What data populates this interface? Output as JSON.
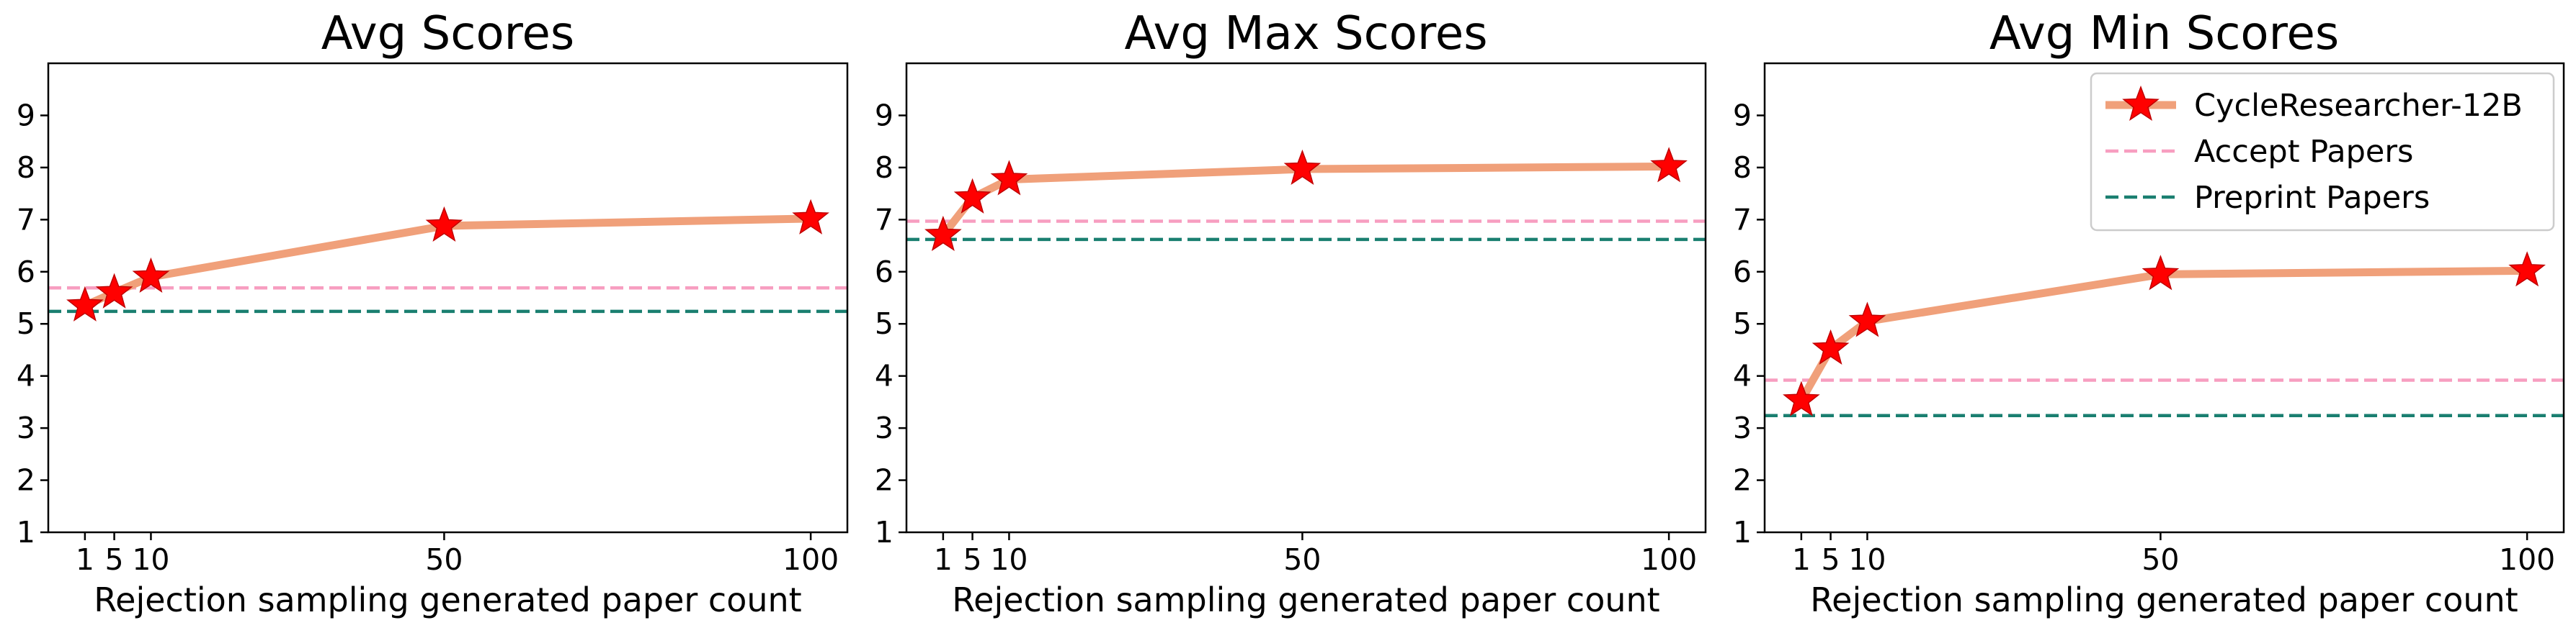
{
  "chart_data": [
    {
      "type": "line",
      "title": "Avg Scores",
      "xlabel": "Rejection sampling generated paper count",
      "ylabel": "",
      "x": [
        1,
        5,
        10,
        50,
        100
      ],
      "xticks": [
        1,
        5,
        10,
        50,
        100
      ],
      "xtick_labels": [
        "1",
        "5",
        "10",
        "50",
        "100"
      ],
      "yticks": [
        1,
        2,
        3,
        4,
        5,
        6,
        7,
        8,
        9
      ],
      "ytick_labels": [
        "1",
        "2",
        "3",
        "4",
        "5",
        "6",
        "7",
        "8",
        "9"
      ],
      "ylim": [
        1,
        10
      ],
      "xlim": [
        -4,
        105
      ],
      "grid": false,
      "series": [
        {
          "name": "CycleResearcher-12B",
          "values": [
            5.35,
            5.6,
            5.9,
            6.88,
            7.02
          ],
          "color": "#f0a07a",
          "marker": "star",
          "marker_color": "#ff0000"
        }
      ],
      "hlines": [
        {
          "name": "Accept Papers",
          "value": 5.69,
          "color": "#f79ec0",
          "style": "dashed"
        },
        {
          "name": "Preprint Papers",
          "value": 5.24,
          "color": "#1a7f70",
          "style": "dashed"
        }
      ],
      "legend": null
    },
    {
      "type": "line",
      "title": "Avg Max Scores",
      "xlabel": "Rejection sampling generated paper count",
      "ylabel": "",
      "x": [
        1,
        5,
        10,
        50,
        100
      ],
      "xticks": [
        1,
        5,
        10,
        50,
        100
      ],
      "xtick_labels": [
        "1",
        "5",
        "10",
        "50",
        "100"
      ],
      "yticks": [
        1,
        2,
        3,
        4,
        5,
        6,
        7,
        8,
        9
      ],
      "ytick_labels": [
        "1",
        "2",
        "3",
        "4",
        "5",
        "6",
        "7",
        "8",
        "9"
      ],
      "ylim": [
        1,
        10
      ],
      "xlim": [
        -4,
        105
      ],
      "grid": false,
      "series": [
        {
          "name": "CycleResearcher-12B",
          "values": [
            6.7,
            7.42,
            7.77,
            7.97,
            8.02
          ],
          "color": "#f0a07a",
          "marker": "star",
          "marker_color": "#ff0000"
        }
      ],
      "hlines": [
        {
          "name": "Accept Papers",
          "value": 6.97,
          "color": "#f79ec0",
          "style": "dashed"
        },
        {
          "name": "Preprint Papers",
          "value": 6.62,
          "color": "#1a7f70",
          "style": "dashed"
        }
      ],
      "legend": null
    },
    {
      "type": "line",
      "title": "Avg Min Scores",
      "xlabel": "Rejection sampling generated paper count",
      "ylabel": "",
      "x": [
        1,
        5,
        10,
        50,
        100
      ],
      "xticks": [
        1,
        5,
        10,
        50,
        100
      ],
      "xtick_labels": [
        "1",
        "5",
        "10",
        "50",
        "100"
      ],
      "yticks": [
        1,
        2,
        3,
        4,
        5,
        6,
        7,
        8,
        9
      ],
      "ytick_labels": [
        "1",
        "2",
        "3",
        "4",
        "5",
        "6",
        "7",
        "8",
        "9"
      ],
      "ylim": [
        1,
        10
      ],
      "xlim": [
        -4,
        105
      ],
      "grid": false,
      "series": [
        {
          "name": "CycleResearcher-12B",
          "values": [
            3.53,
            4.52,
            5.05,
            5.95,
            6.02
          ],
          "color": "#f0a07a",
          "marker": "star",
          "marker_color": "#ff0000"
        }
      ],
      "hlines": [
        {
          "name": "Accept Papers",
          "value": 3.92,
          "color": "#f79ec0",
          "style": "dashed"
        },
        {
          "name": "Preprint Papers",
          "value": 3.24,
          "color": "#1a7f70",
          "style": "dashed"
        }
      ],
      "legend": {
        "position": "top-right",
        "entries": [
          "CycleResearcher-12B",
          "Accept Papers",
          "Preprint Papers"
        ]
      }
    }
  ]
}
